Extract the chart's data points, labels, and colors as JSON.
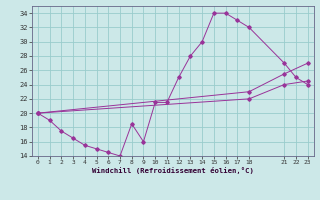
{
  "xlabel": "Windchill (Refroidissement éolien,°C)",
  "bg_color": "#cce8e8",
  "grid_color": "#99cccc",
  "line_color": "#993399",
  "line1_x": [
    0,
    1,
    2,
    3,
    4,
    5,
    6,
    7,
    8,
    9,
    10,
    11,
    12,
    13,
    14,
    15,
    16,
    17,
    18,
    21,
    22,
    23
  ],
  "line1_y": [
    20,
    19,
    17.5,
    16.5,
    15.5,
    15,
    14.5,
    14,
    18.5,
    16,
    21.5,
    21.5,
    25,
    28,
    30,
    34,
    34,
    33,
    32,
    27,
    25,
    24
  ],
  "line2_x": [
    0,
    18,
    21,
    23
  ],
  "line2_y": [
    20,
    23,
    25.5,
    27
  ],
  "line3_x": [
    0,
    18,
    21,
    23
  ],
  "line3_y": [
    20,
    22,
    24,
    24.5
  ],
  "ylim": [
    14,
    35
  ],
  "xlim": [
    -0.5,
    23.5
  ],
  "yticks": [
    14,
    16,
    18,
    20,
    22,
    24,
    26,
    28,
    30,
    32,
    34
  ],
  "xticks": [
    0,
    1,
    2,
    3,
    4,
    5,
    6,
    7,
    8,
    9,
    10,
    11,
    12,
    13,
    14,
    15,
    16,
    17,
    18,
    21,
    22,
    23
  ]
}
